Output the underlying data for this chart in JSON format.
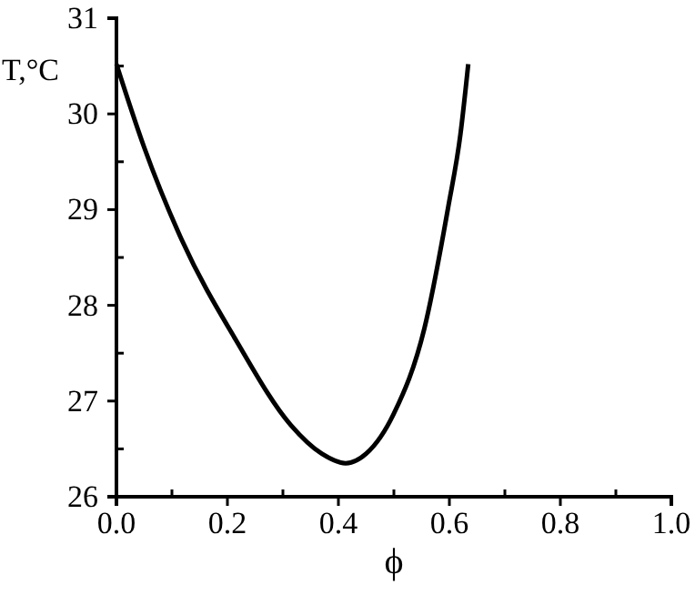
{
  "chart_data": {
    "type": "line",
    "xlabel": "ϕ",
    "ylabel": "T,°C",
    "x": [
      0,
      0.05,
      0.118,
      0.216,
      0.314,
      0.37,
      0.413,
      0.45,
      0.5,
      0.555,
      0.598,
      0.62,
      0.634
    ],
    "values": [
      30.52,
      29.65,
      28.68,
      27.63,
      26.75,
      26.45,
      26.35,
      26.45,
      26.87,
      27.76,
      29.03,
      29.79,
      30.52
    ],
    "color": "#000000",
    "marker": "none",
    "line_style": "solid",
    "xlim": [
      0,
      1
    ],
    "ylim": [
      26,
      31
    ],
    "xticks": [
      {
        "value": 0,
        "label": "0.0"
      },
      {
        "value": 0.1,
        "label": null
      },
      {
        "value": 0.2,
        "label": "0.2"
      },
      {
        "value": 0.3,
        "label": null
      },
      {
        "value": 0.4,
        "label": "0.4"
      },
      {
        "value": 0.5,
        "label": null
      },
      {
        "value": 0.6,
        "label": "0.6"
      },
      {
        "value": 0.7,
        "label": null
      },
      {
        "value": 0.8,
        "label": "0.8"
      },
      {
        "value": 0.9,
        "label": null
      },
      {
        "value": 1,
        "label": "1.0"
      }
    ],
    "yticks": [
      26,
      {
        "value": 26.5,
        "label": null
      },
      27,
      {
        "value": 27.5,
        "label": null
      },
      28,
      {
        "value": 28.5,
        "label": null
      },
      29,
      {
        "value": 29.5,
        "label": null
      },
      30,
      {
        "value": 30.5,
        "label": null
      },
      31
    ]
  }
}
